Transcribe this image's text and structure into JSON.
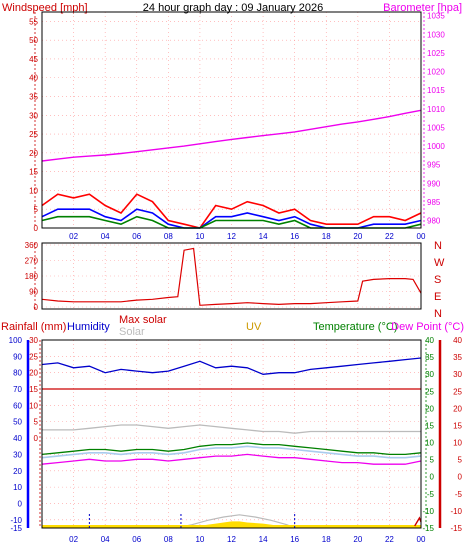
{
  "title": "24 hour graph day : 09 January 2026",
  "colors": {
    "wind": "#ff0000",
    "gust": "#ff0000",
    "avg_blue": "#0000ff",
    "avg_green": "#008000",
    "baro": "#ee00ee",
    "dir": "#dd0000",
    "humidity": "#0000cc",
    "maxsolar": "#bbbbbb",
    "solar": "#ffdd00",
    "uv": "#cc9900",
    "temp": "#008000",
    "dew": "#ee00ee",
    "chill": "#aaccee",
    "rain": "#cc0000",
    "rain_axis": "#0000ff",
    "grid": "#ff9999",
    "frame": "#000000"
  },
  "time_ticks": [
    "02",
    "04",
    "06",
    "08",
    "10",
    "12",
    "14",
    "16",
    "18",
    "20",
    "22",
    "00"
  ],
  "chart_data": [
    {
      "type": "line",
      "title": "24 hour graph day : 09 January 2026",
      "left_label": "Windspeed [mph]",
      "right_label": "Barometer [hpa]",
      "left_ticks": [
        "55",
        "50",
        "45",
        "40",
        "35",
        "30",
        "25",
        "20",
        "15",
        "10",
        "5",
        "0"
      ],
      "right_ticks": [
        "1035",
        "1030",
        "1025",
        "1020",
        "1015",
        "1010",
        "1005",
        "1000",
        "995",
        "990",
        "985",
        "980"
      ],
      "ylim_left": [
        0,
        57.5
      ],
      "ylim_right": [
        978,
        1036
      ],
      "x": [
        0,
        1,
        2,
        3,
        4,
        5,
        6,
        7,
        8,
        9,
        10,
        11,
        12,
        13,
        14,
        15,
        16,
        17,
        18,
        19,
        20,
        21,
        22,
        23,
        24
      ],
      "series": [
        {
          "key": "baro",
          "values": [
            996,
            996.5,
            997,
            997.3,
            997.6,
            998,
            998.5,
            999,
            999.5,
            1000,
            1000.6,
            1001.2,
            1001.8,
            1002.3,
            1002.8,
            1003.3,
            1003.8,
            1004.5,
            1005.2,
            1005.9,
            1006.5,
            1007.2,
            1007.9,
            1008.8,
            1009.6
          ]
        },
        {
          "key": "gust",
          "values": [
            6,
            9,
            8,
            9,
            6,
            4,
            9,
            7,
            2,
            1,
            0,
            6,
            5,
            7,
            6,
            4,
            5,
            2,
            1,
            1,
            1,
            3,
            3,
            2,
            4
          ]
        },
        {
          "key": "avg_blue",
          "values": [
            3,
            5,
            5,
            5,
            3,
            2,
            5,
            4,
            1,
            0,
            0,
            3,
            3,
            4,
            3,
            2,
            3,
            1,
            0,
            0,
            0,
            1,
            1,
            1,
            2
          ]
        },
        {
          "key": "avg_green",
          "values": [
            2,
            3,
            3,
            3,
            2,
            1,
            3,
            2,
            0,
            0,
            0,
            2,
            2,
            2,
            2,
            1,
            2,
            0,
            0,
            0,
            0,
            0,
            0,
            0,
            1
          ]
        }
      ]
    },
    {
      "type": "line",
      "title": "",
      "right_labels": [
        "N",
        "W",
        "S",
        "E",
        "N"
      ],
      "left_ticks": [
        "360",
        "270",
        "180",
        "90",
        "0"
      ],
      "ylim": [
        0,
        360
      ],
      "x": [
        0,
        1,
        2,
        3,
        4,
        5,
        6,
        7,
        8,
        8.6,
        9,
        9.6,
        10,
        11,
        12,
        13,
        14,
        15,
        16,
        17,
        18,
        19,
        20,
        20.3,
        21,
        22,
        23,
        23.5,
        24
      ],
      "values": [
        45,
        35,
        30,
        30,
        30,
        30,
        40,
        45,
        55,
        60,
        330,
        340,
        10,
        15,
        20,
        25,
        20,
        15,
        20,
        20,
        25,
        30,
        35,
        150,
        160,
        165,
        165,
        160,
        80
      ]
    },
    {
      "type": "line",
      "title": "",
      "labels": {
        "rain": "Rainfall (mm)",
        "humidity": "Humidity",
        "maxsolar": "Max solar",
        "solar": "Solar",
        "uv": "UV",
        "temp": "Temperature (°C)",
        "dew": "Dew Point (°C)"
      },
      "rain_ticks": [
        "100",
        "90",
        "80",
        "70",
        "60",
        "50",
        "40",
        "30",
        "20",
        "10",
        "0",
        "-10",
        "-15"
      ],
      "mid_ticks": [
        "30",
        "25",
        "20",
        "15",
        "10",
        "5",
        "0"
      ],
      "temp_ticks": [
        "40",
        "35",
        "30",
        "25",
        "20",
        "15",
        "10",
        "5",
        "0",
        "-5",
        "-10",
        "-15"
      ],
      "ylim_rain": [
        -15,
        100
      ],
      "x": [
        0,
        1,
        2,
        3,
        4,
        5,
        6,
        7,
        8,
        9,
        10,
        11,
        12,
        13,
        14,
        15,
        16,
        17,
        18,
        19,
        20,
        21,
        22,
        23,
        24
      ],
      "series": [
        {
          "key": "humidity",
          "values": [
            85,
            86,
            83,
            84,
            80,
            82,
            81,
            80,
            81,
            84,
            87,
            83,
            84,
            83,
            79,
            80,
            80,
            82,
            83,
            84,
            85,
            86,
            87,
            88,
            89
          ]
        },
        {
          "key": "rain_total",
          "values": [
            70,
            70,
            70,
            70,
            70,
            70,
            70,
            70,
            70,
            70,
            70,
            70,
            70,
            70,
            70,
            70,
            70,
            70,
            70,
            70,
            70,
            70,
            70,
            70,
            70
          ]
        },
        {
          "key": "maxsolar",
          "values": [
            45,
            45,
            45,
            46,
            47,
            48,
            48,
            47,
            46,
            47,
            48,
            47,
            46,
            45,
            44,
            44,
            43,
            44,
            44,
            44,
            44,
            44,
            44,
            44,
            44
          ]
        },
        {
          "key": "temp",
          "values": [
            30,
            31,
            32,
            33,
            33,
            32,
            33,
            33,
            32,
            33,
            35,
            36,
            36,
            37,
            36,
            36,
            35,
            34,
            33,
            32,
            31,
            31,
            30,
            30,
            31
          ]
        },
        {
          "key": "chill",
          "values": [
            28,
            29,
            30,
            31,
            31,
            30,
            31,
            31,
            30,
            31,
            33,
            34,
            34,
            35,
            34,
            34,
            33,
            32,
            31,
            30,
            29,
            29,
            28,
            28,
            29
          ]
        },
        {
          "key": "dew",
          "values": [
            24,
            25,
            26,
            27,
            26,
            26,
            27,
            27,
            26,
            27,
            28,
            29,
            29,
            30,
            29,
            28,
            28,
            27,
            26,
            25,
            25,
            24,
            24,
            24,
            26
          ]
        }
      ],
      "solar_curve": {
        "x": [
          8.5,
          9.5,
          10.5,
          11.5,
          12.5,
          13.5,
          14.5,
          15.5,
          16
        ],
        "values": [
          0,
          3,
          7,
          10,
          12,
          10,
          7,
          3,
          0
        ]
      },
      "solar_fill": {
        "x": [
          9,
          10,
          11,
          11.5,
          12,
          12.5,
          13,
          14,
          15,
          15.5
        ],
        "values": [
          0,
          2,
          4,
          5,
          6,
          6,
          5,
          4,
          2,
          0
        ]
      }
    }
  ]
}
